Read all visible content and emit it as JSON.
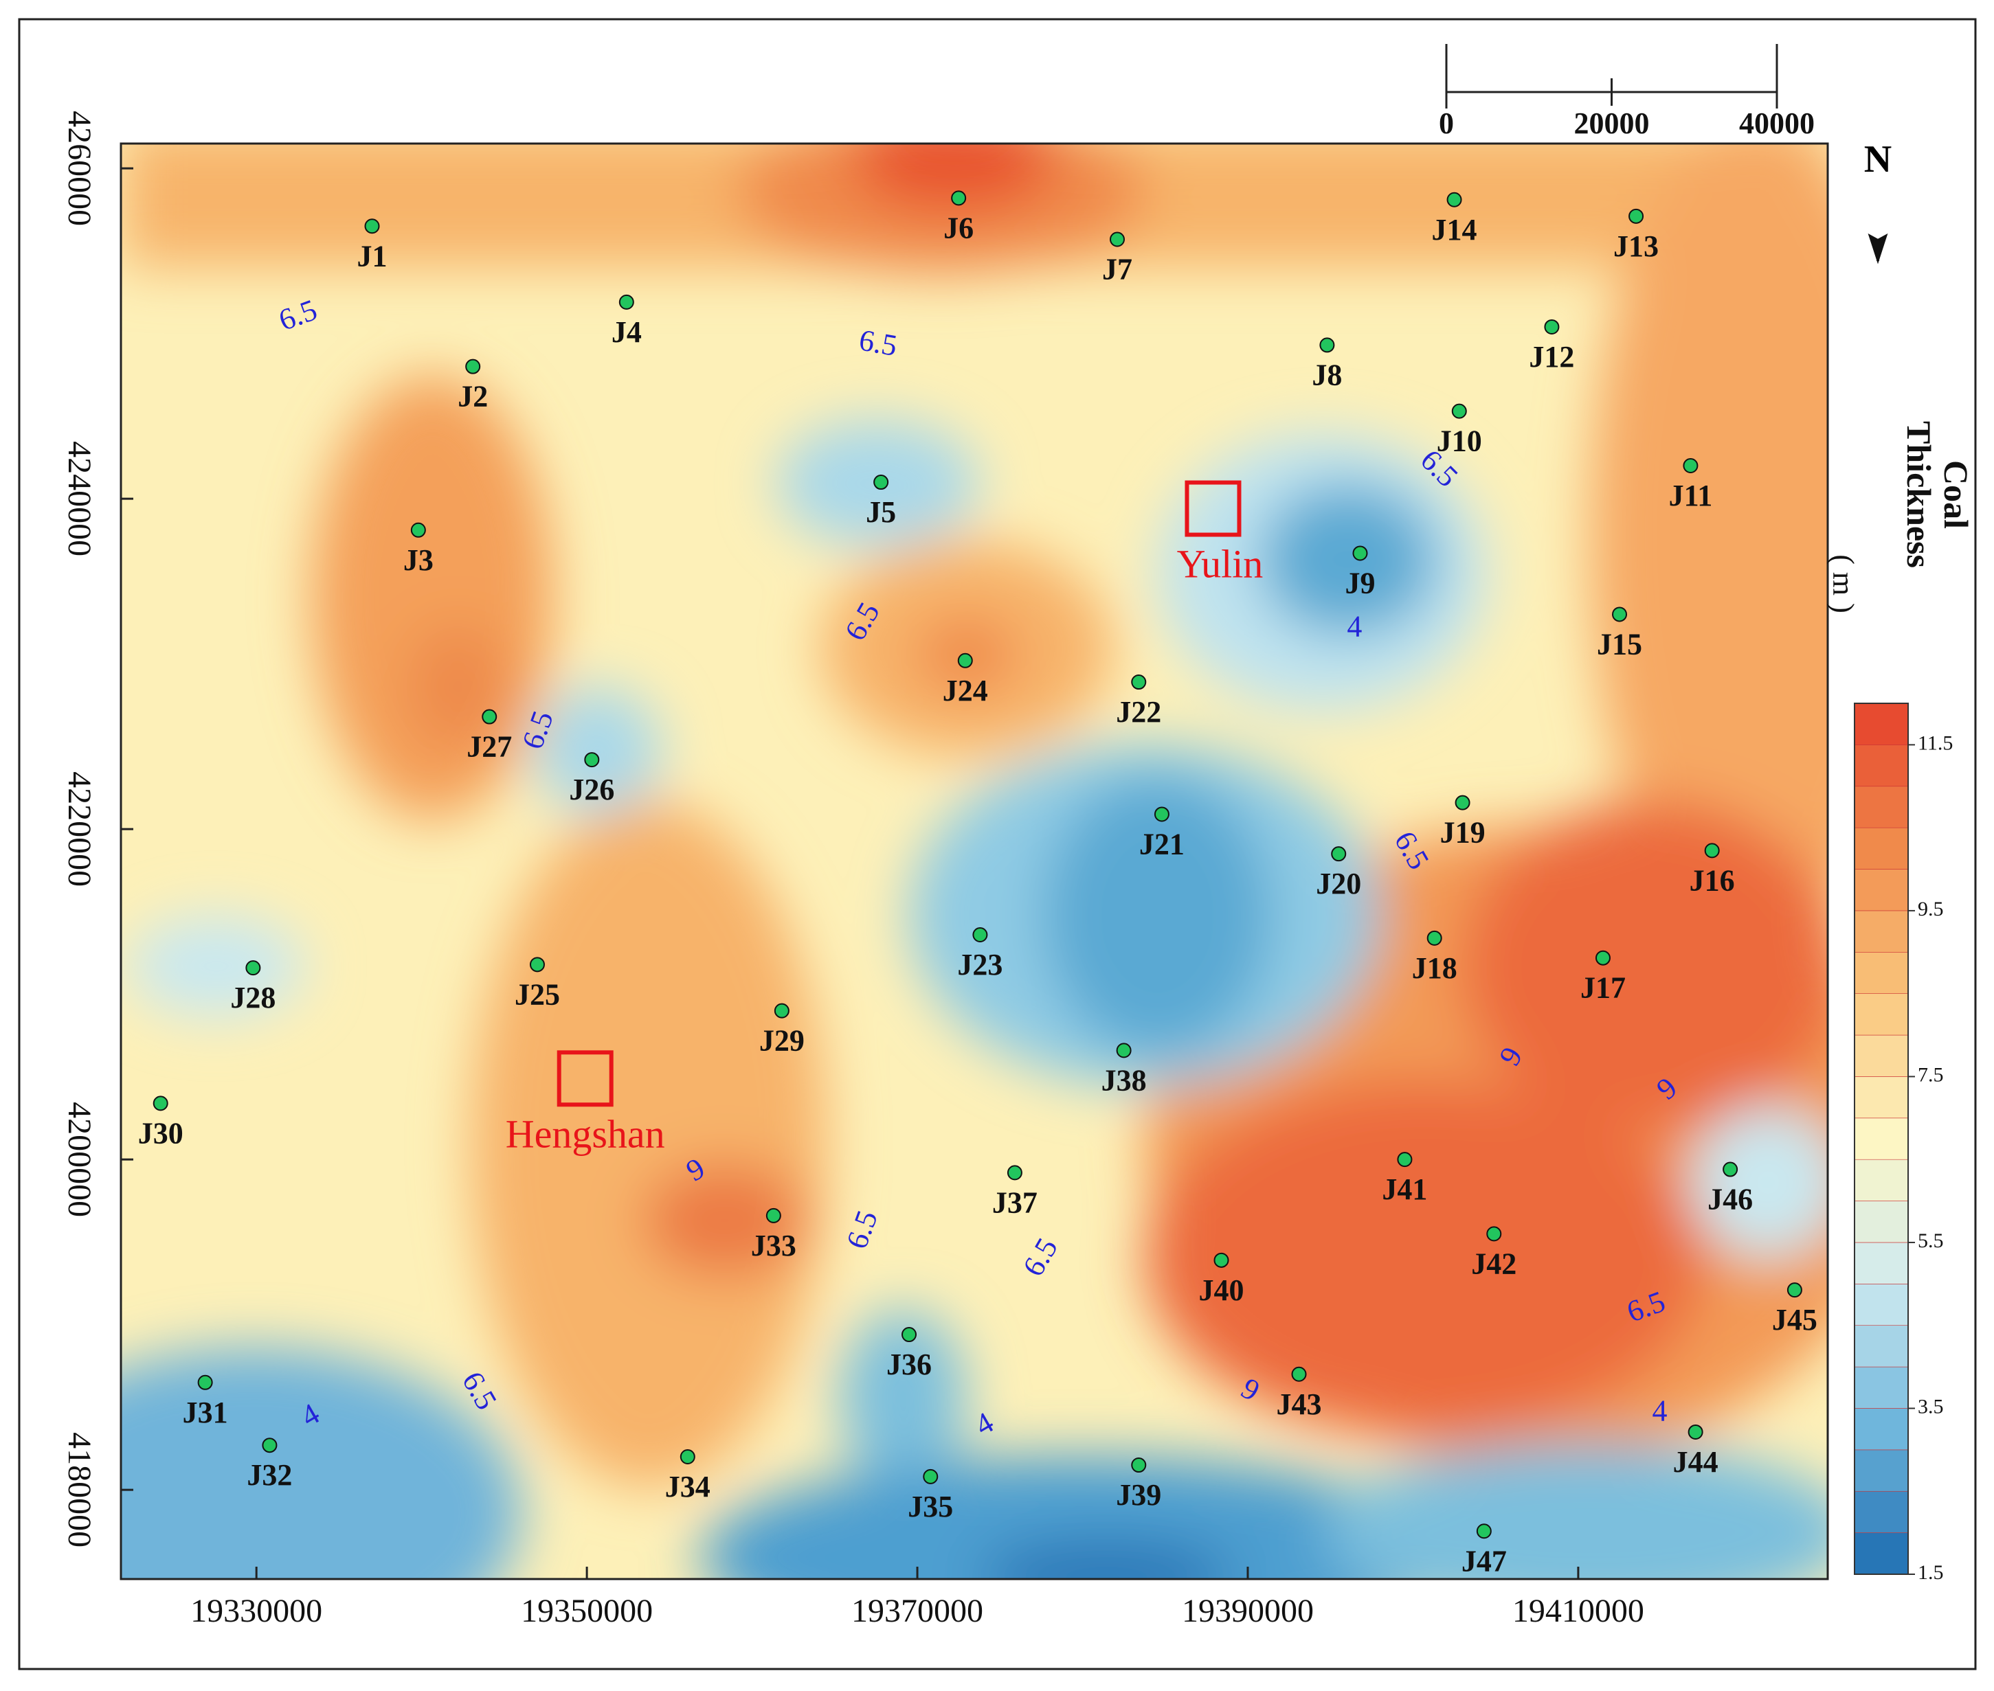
{
  "map": {
    "xlim": [
      19321800,
      19425100
    ],
    "ylim": [
      4174600,
      4261500
    ],
    "xticks": [
      19330000,
      19350000,
      19370000,
      19390000,
      19410000
    ],
    "yticks": [
      4180000,
      4200000,
      4220000,
      4240000,
      4260000
    ],
    "wells": [
      {
        "label": "J1",
        "x": 19337000,
        "y": 4256500
      },
      {
        "label": "J2",
        "x": 19343100,
        "y": 4248000
      },
      {
        "label": "J3",
        "x": 19339800,
        "y": 4238100
      },
      {
        "label": "J4",
        "x": 19352400,
        "y": 4251900
      },
      {
        "label": "J5",
        "x": 19367800,
        "y": 4241000
      },
      {
        "label": "J6",
        "x": 19372500,
        "y": 4258200
      },
      {
        "label": "J7",
        "x": 19382100,
        "y": 4255700
      },
      {
        "label": "J8",
        "x": 19394800,
        "y": 4249300
      },
      {
        "label": "J9",
        "x": 19396800,
        "y": 4236700
      },
      {
        "label": "J10",
        "x": 19402800,
        "y": 4245300
      },
      {
        "label": "J11",
        "x": 19416800,
        "y": 4242000
      },
      {
        "label": "J12",
        "x": 19408400,
        "y": 4250400
      },
      {
        "label": "J13",
        "x": 19413500,
        "y": 4257100
      },
      {
        "label": "J14",
        "x": 19402500,
        "y": 4258100
      },
      {
        "label": "J15",
        "x": 19412500,
        "y": 4233000
      },
      {
        "label": "J16",
        "x": 19418100,
        "y": 4218700
      },
      {
        "label": "J17",
        "x": 19411500,
        "y": 4212200
      },
      {
        "label": "J18",
        "x": 19401300,
        "y": 4213400
      },
      {
        "label": "J19",
        "x": 19403000,
        "y": 4221600
      },
      {
        "label": "J20",
        "x": 19395500,
        "y": 4218500
      },
      {
        "label": "J21",
        "x": 19384800,
        "y": 4220900
      },
      {
        "label": "J22",
        "x": 19383400,
        "y": 4228900
      },
      {
        "label": "J23",
        "x": 19373800,
        "y": 4213600
      },
      {
        "label": "J24",
        "x": 19372900,
        "y": 4230200
      },
      {
        "label": "J25",
        "x": 19347000,
        "y": 4211800
      },
      {
        "label": "J26",
        "x": 19350300,
        "y": 4224200
      },
      {
        "label": "J27",
        "x": 19344100,
        "y": 4226800
      },
      {
        "label": "J28",
        "x": 19329800,
        "y": 4211600
      },
      {
        "label": "J29",
        "x": 19361800,
        "y": 4209000
      },
      {
        "label": "J30",
        "x": 19324200,
        "y": 4203400
      },
      {
        "label": "J31",
        "x": 19326900,
        "y": 4186500
      },
      {
        "label": "J32",
        "x": 19330800,
        "y": 4182700
      },
      {
        "label": "J33",
        "x": 19361300,
        "y": 4196600
      },
      {
        "label": "J34",
        "x": 19356100,
        "y": 4182000
      },
      {
        "label": "J35",
        "x": 19370800,
        "y": 4180800
      },
      {
        "label": "J36",
        "x": 19369500,
        "y": 4189400
      },
      {
        "label": "J37",
        "x": 19375900,
        "y": 4199200
      },
      {
        "label": "J38",
        "x": 19382500,
        "y": 4206600
      },
      {
        "label": "J39",
        "x": 19383400,
        "y": 4181500
      },
      {
        "label": "J40",
        "x": 19388400,
        "y": 4193900
      },
      {
        "label": "J41",
        "x": 19399500,
        "y": 4200000
      },
      {
        "label": "J42",
        "x": 19404900,
        "y": 4195500
      },
      {
        "label": "J43",
        "x": 19393100,
        "y": 4187000
      },
      {
        "label": "J44",
        "x": 19417100,
        "y": 4183500
      },
      {
        "label": "J45",
        "x": 19423100,
        "y": 4192100
      },
      {
        "label": "J46",
        "x": 19419200,
        "y": 4199400
      },
      {
        "label": "J47",
        "x": 19404300,
        "y": 4177500
      }
    ],
    "places": [
      {
        "label": "Yulin",
        "x": 19387900,
        "y": 4239400
      },
      {
        "label": "Hengshan",
        "x": 19349900,
        "y": 4204900
      }
    ],
    "contour_labels": [
      "6.5",
      "6.5",
      "6.5",
      "6.5",
      "6.5",
      "6.5",
      "4",
      "9",
      "6.5",
      "9",
      "9",
      "6.5",
      "6.5",
      "4",
      "4",
      "9",
      "6.5",
      "4"
    ],
    "scale_bar": {
      "ticks": [
        0,
        20000,
        40000
      ]
    },
    "north": "N",
    "colorbar": {
      "title": [
        "Coal",
        "Thickness"
      ],
      "unit": "( m )",
      "lim": [
        1.5,
        12
      ],
      "step": 0.5,
      "ticks": [
        1.5,
        3.5,
        5.5,
        7.5,
        9.5,
        11.5
      ],
      "colors": [
        "#1b6bb0",
        "#6fb6dc",
        "#cfeaf0",
        "#fdf6c4",
        "#f9c57c",
        "#f08a4b",
        "#e5412c"
      ]
    }
  }
}
